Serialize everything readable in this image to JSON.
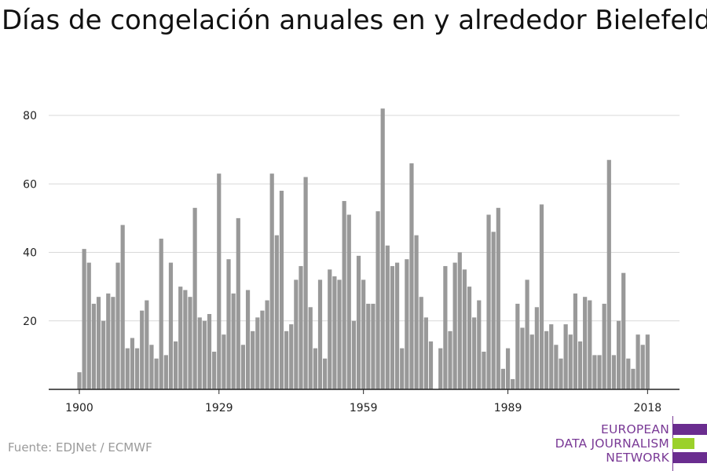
{
  "title": "Días de congelación anuales en y alrededor Bielefeld",
  "source": "Fuente: EDJNet / ECMWF",
  "logo": {
    "lines": [
      "EUROPEAN",
      "DATA JOURNALISM",
      "NETWORK"
    ],
    "colors": {
      "text": "#7a3a96",
      "purple": "#6a2d8f",
      "green": "#9bd12a"
    }
  },
  "colors": {
    "bar": "#999999",
    "grid": "#d9d9d9",
    "axis": "#222222"
  },
  "chart_data": {
    "type": "bar",
    "title": "Días de congelación anuales en y alrededor Bielefeld",
    "xlabel": "",
    "ylabel": "",
    "x_start": 1900,
    "x_end": 2018,
    "x_ticks": [
      1900,
      1929,
      1959,
      1989,
      2018
    ],
    "y_ticks": [
      20,
      40,
      60,
      80
    ],
    "ylim": [
      0,
      85
    ],
    "grid": true,
    "legend": "none",
    "values": [
      5,
      41,
      37,
      25,
      27,
      20,
      28,
      27,
      37,
      48,
      12,
      15,
      12,
      23,
      26,
      13,
      9,
      44,
      10,
      37,
      14,
      30,
      29,
      27,
      53,
      21,
      20,
      22,
      11,
      63,
      16,
      38,
      28,
      50,
      13,
      29,
      17,
      21,
      23,
      26,
      63,
      45,
      58,
      17,
      19,
      32,
      36,
      62,
      24,
      12,
      32,
      9,
      35,
      33,
      32,
      55,
      51,
      20,
      39,
      32,
      25,
      25,
      52,
      82,
      42,
      36,
      37,
      12,
      38,
      66,
      45,
      27,
      21,
      14,
      0,
      12,
      36,
      17,
      37,
      40,
      35,
      30,
      21,
      26,
      11,
      51,
      46,
      53,
      6,
      12,
      3,
      25,
      18,
      32,
      16,
      24,
      54,
      17,
      19,
      13,
      9,
      19,
      16,
      28,
      14,
      27,
      26,
      10,
      10,
      25,
      67,
      10,
      20,
      34,
      9,
      6,
      16,
      13,
      16
    ]
  }
}
